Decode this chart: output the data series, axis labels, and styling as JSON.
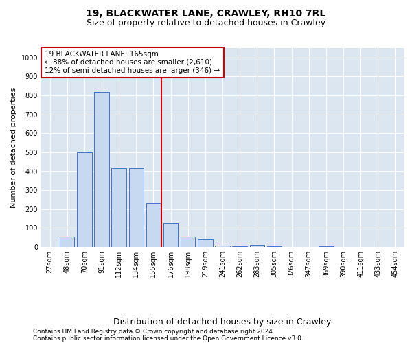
{
  "title1": "19, BLACKWATER LANE, CRAWLEY, RH10 7RL",
  "title2": "Size of property relative to detached houses in Crawley",
  "xlabel": "Distribution of detached houses by size in Crawley",
  "ylabel": "Number of detached properties",
  "bar_labels": [
    "27sqm",
    "48sqm",
    "70sqm",
    "91sqm",
    "112sqm",
    "134sqm",
    "155sqm",
    "176sqm",
    "198sqm",
    "219sqm",
    "241sqm",
    "262sqm",
    "283sqm",
    "305sqm",
    "326sqm",
    "347sqm",
    "369sqm",
    "390sqm",
    "411sqm",
    "433sqm",
    "454sqm"
  ],
  "bar_values": [
    0,
    55,
    500,
    820,
    415,
    415,
    230,
    125,
    55,
    40,
    8,
    5,
    10,
    5,
    0,
    0,
    5,
    0,
    0,
    0,
    0
  ],
  "bar_color": "#c6d9f0",
  "bar_edge_color": "#4472c4",
  "background_color": "#dce6f1",
  "vline_color": "#cc0000",
  "annotation_box_color": "#cc0000",
  "annotation_line1": "19 BLACKWATER LANE: 165sqm",
  "annotation_line2": "← 88% of detached houses are smaller (2,610)",
  "annotation_line3": "12% of semi-detached houses are larger (346) →",
  "ylim": [
    0,
    1050
  ],
  "yticks": [
    0,
    100,
    200,
    300,
    400,
    500,
    600,
    700,
    800,
    900,
    1000
  ],
  "footnote1": "Contains HM Land Registry data © Crown copyright and database right 2024.",
  "footnote2": "Contains public sector information licensed under the Open Government Licence v3.0.",
  "title1_fontsize": 10,
  "title2_fontsize": 9,
  "xlabel_fontsize": 9,
  "ylabel_fontsize": 8,
  "tick_fontsize": 7,
  "annotation_fontsize": 7.5,
  "footnote_fontsize": 6.5
}
